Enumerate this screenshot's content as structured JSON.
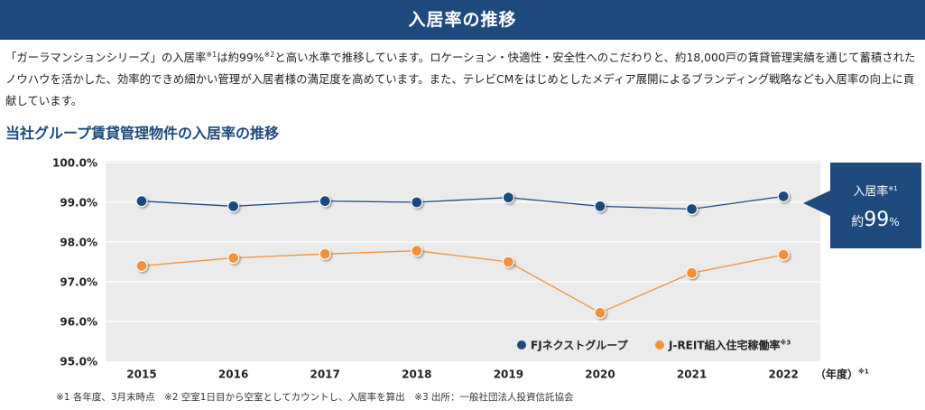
{
  "header": {
    "title": "入居率の推移"
  },
  "intro": {
    "part1": "「ガーラマンションシリーズ」の入居率",
    "note1": "※1",
    "part2": "は約99%",
    "note2": "※2",
    "part3": "と高い水準で推移しています。ロケーション・快適性・安全性へのこだわりと、約18,000戸の賃貸管理実績を通じて蓄積されたノウハウを活かした、効率的できめ細かい管理が入居者様の満足度を高めています。また、テレビCMをはじめとしたメディア展開によるブランディング戦略なども入居率の向上に貢献しています。"
  },
  "subtitle": "当社グループ賃貸管理物件の入居率の推移",
  "chart_data": {
    "type": "line",
    "title": "",
    "xlabel": "（年度）",
    "xlabel_note": "※1",
    "ylabel": "",
    "x": [
      "2015",
      "2016",
      "2017",
      "2018",
      "2019",
      "2020",
      "2021",
      "2022"
    ],
    "ylim": [
      95.0,
      100.0
    ],
    "yticks": [
      "95.0%",
      "96.0%",
      "97.0%",
      "98.0%",
      "99.0%",
      "100.0%"
    ],
    "ytick_values": [
      95,
      96,
      97,
      98,
      99,
      100
    ],
    "grid": true,
    "legend_position": "bottom-right",
    "series": [
      {
        "name": "FJネクストグループ",
        "name_note": "",
        "color": "#1f4a7d",
        "values": [
          99.03,
          98.9,
          99.03,
          99.0,
          99.12,
          98.9,
          98.83,
          99.15
        ]
      },
      {
        "name": "J-REIT組入住宅稼働率",
        "name_note": "※3",
        "color": "#f0923a",
        "values": [
          97.4,
          97.6,
          97.7,
          97.78,
          97.5,
          96.22,
          97.22,
          97.68
        ]
      }
    ],
    "callout": {
      "title": "入居率",
      "title_note": "※1",
      "prefix": "約",
      "value": "99",
      "unit": "%"
    }
  },
  "footnote": "※1 各年度、3月末時点　※2 空室1日目から空室としてカウントし、入居率を算出　※3 出所：一般社団法人投資信託協会",
  "colors": {
    "banner": "#1f4a7d",
    "plot_bg": "#ebebeb",
    "grid": "#ffffff"
  }
}
